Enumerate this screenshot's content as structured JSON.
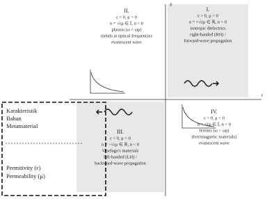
{
  "axes": {
    "vertical": "μ",
    "horizontal": "ε"
  },
  "quadrants": [
    {
      "number": "I.",
      "lines": [
        "ε > 0, μ > 0",
        "n = +√εμ ∈ ℝ, n > 0",
        "isotropic dielectrics",
        "right-handed (RH) /",
        "forward-wave propagation"
      ]
    },
    {
      "number": "II.",
      "lines": [
        "ε < 0, μ > 0",
        "n = √εμ ∈ 𝕀, n < 0",
        "plasma (ω < ωp)",
        "metals at optical frequencies",
        "evanescent wave"
      ]
    },
    {
      "number": "III.",
      "lines": [
        "ε < 0, μ < 0",
        "n = −√εμ ∈ ℝ, n < 0",
        "Veselago's materials",
        "left-handed (LH) /",
        "backward-wave propagation"
      ]
    },
    {
      "number": "IV.",
      "lines": [
        "ε > 0, μ < 0",
        "n = √εμ ∈ 𝕀, n < 0",
        "ferrites (ω < ωp)",
        "(ferrimagnetic materials)",
        "evanescent wave"
      ]
    }
  ],
  "legend": {
    "title": [
      "Karakteristik",
      "Bahan",
      "Metamaterial"
    ],
    "items": [
      "Permitivity (ε)",
      "Permeability (μ)"
    ]
  }
}
